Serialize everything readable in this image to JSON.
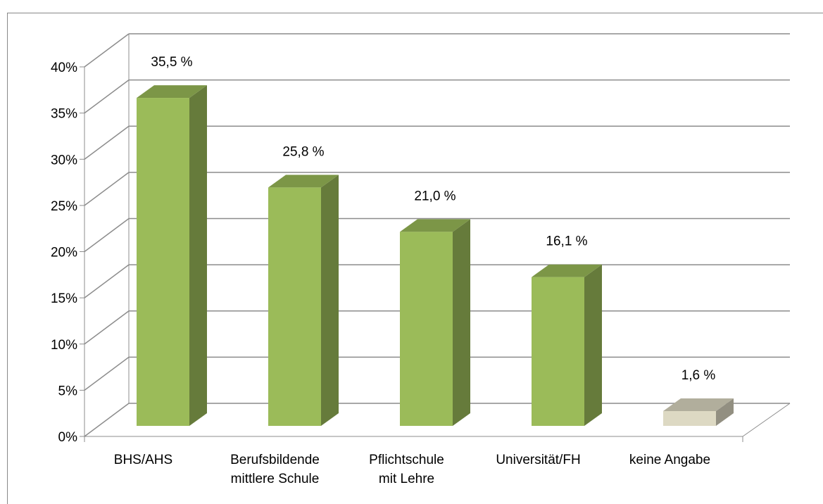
{
  "chart_data": {
    "type": "bar3d",
    "categories": [
      "BHS/AHS",
      "Berufsbildende\nmittlere Schule",
      "Pflichtschule\nmit Lehre",
      "Universität/FH",
      "keine Angabe"
    ],
    "values": [
      35.5,
      25.8,
      21.0,
      16.1,
      1.6
    ],
    "value_labels": [
      "35,5 %",
      "25,8 %",
      "21,0 %",
      "16,1 %",
      "1,6 %"
    ],
    "colors": [
      "#9bbb59",
      "#9bbb59",
      "#9bbb59",
      "#9bbb59",
      "#ddd9c3"
    ],
    "ylim": [
      0,
      40
    ],
    "yticks": [
      {
        "value": 0,
        "label": "0%"
      },
      {
        "value": 5,
        "label": "5%"
      },
      {
        "value": 10,
        "label": "10%"
      },
      {
        "value": 15,
        "label": "15%"
      },
      {
        "value": 20,
        "label": "20%"
      },
      {
        "value": 25,
        "label": "25%"
      },
      {
        "value": 30,
        "label": "30%"
      },
      {
        "value": 35,
        "label": "35%"
      },
      {
        "value": 40,
        "label": "40%"
      }
    ],
    "grid": true
  }
}
